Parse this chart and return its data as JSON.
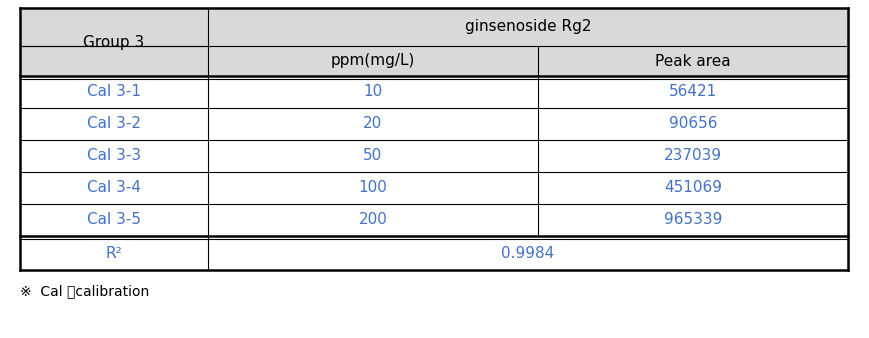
{
  "title_col1": "Group 3",
  "title_merged": "ginsenoside Rg2",
  "subheader_col2": "ppm(mg/L)",
  "subheader_col3": "Peak area",
  "rows": [
    [
      "Cal 3-1",
      "10",
      "56421"
    ],
    [
      "Cal 3-2",
      "20",
      "90656"
    ],
    [
      "Cal 3-3",
      "50",
      "237039"
    ],
    [
      "Cal 3-4",
      "100",
      "451069"
    ],
    [
      "Cal 3-5",
      "200",
      "965339"
    ]
  ],
  "r_squared_label": "R²",
  "r_squared_value": "0.9984",
  "footnote": "※  Cal ：calibration",
  "header_bg": "#d9d9d9",
  "row_bg": "#ffffff",
  "border_color": "#000000",
  "text_color_header": "#000000",
  "text_color_data": "#4472c4",
  "text_color_label": "#4472c4",
  "font_size": 11,
  "footnote_font_size": 10,
  "fig_width": 8.7,
  "fig_height": 3.38,
  "dpi": 100
}
